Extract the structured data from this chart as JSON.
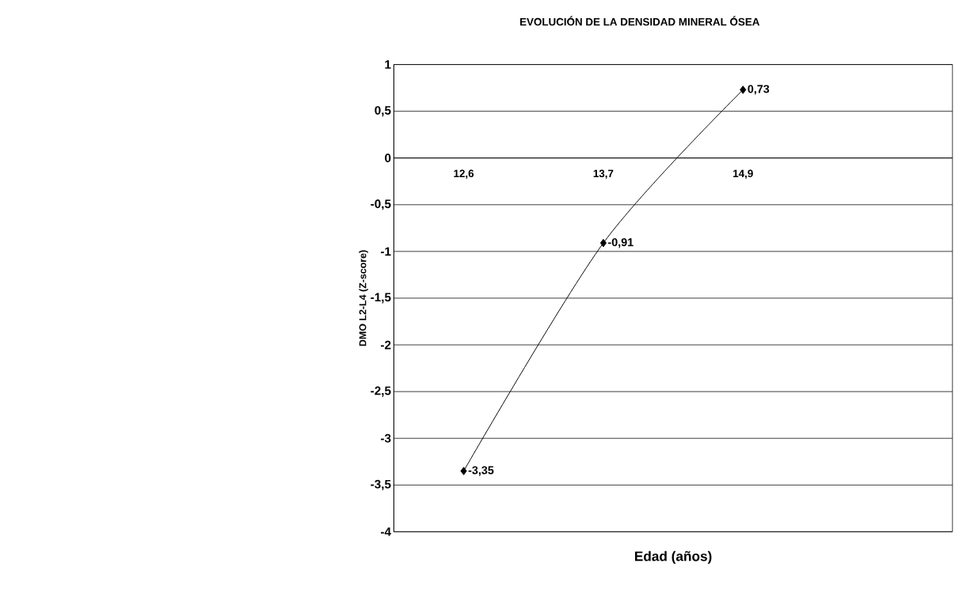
{
  "chart_data": {
    "type": "line",
    "title": "EVOLUCIÓN DE LA DENSIDAD MINERAL ÓSEA",
    "xlabel": "Edad (años)",
    "ylabel": "DMO L2-L4 (Z-score)",
    "categories": [
      "12,6",
      "13,7",
      "14,9",
      null
    ],
    "values": [
      -3.35,
      -0.91,
      0.73,
      null
    ],
    "value_labels": [
      "-3,35",
      "-0,91",
      "0,73",
      null
    ],
    "color": "#000000",
    "ylim": [
      -4,
      1
    ],
    "yticks": [
      {
        "value": -4,
        "label": "-4"
      },
      {
        "value": -3.5,
        "label": "-3,5"
      },
      {
        "value": -3,
        "label": "-3"
      },
      {
        "value": -2.5,
        "label": "-2,5"
      },
      {
        "value": -2,
        "label": "-2"
      },
      {
        "value": -1.5,
        "label": "-1,5"
      },
      {
        "value": -1,
        "label": "-1"
      },
      {
        "value": -0.5,
        "label": "-0,5"
      },
      {
        "value": 0,
        "label": "0"
      },
      {
        "value": 0.5,
        "label": "0,5"
      },
      {
        "value": 1,
        "label": "1"
      }
    ],
    "grid": "y",
    "marker": "diamond",
    "line_style": "solid"
  }
}
